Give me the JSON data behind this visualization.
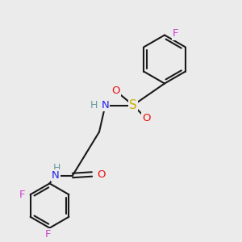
{
  "bg_color": "#ebebeb",
  "bond_color": "#1a1a1a",
  "bond_width": 1.5,
  "atom_colors": {
    "C": "#1a1a1a",
    "H": "#6a9a9a",
    "N": "#2020ee",
    "O": "#ee1010",
    "S": "#c8b000",
    "F": "#cc44cc"
  },
  "font_size": 9.5
}
